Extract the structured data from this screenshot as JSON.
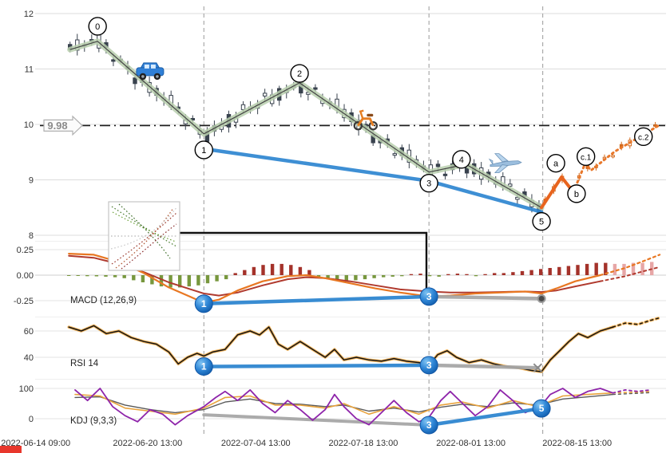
{
  "price_line": {
    "value": 9.98,
    "label": "9.98"
  },
  "panels": {
    "macd_label": "MACD (12,26,9)",
    "rsi_label": "RSI 14",
    "kdj_label": "KDJ (9,3,3)"
  },
  "axes": {
    "x_ticks": [
      {
        "label": "2022-06-14 09:00",
        "t": -0.003
      },
      {
        "label": "2022-06-20 13:00",
        "t": 0.176
      },
      {
        "label": "2022-07-04 13:00",
        "t": 0.349
      },
      {
        "label": "2022-07-18 13:00",
        "t": 0.521
      },
      {
        "label": "2022-08-01 13:00",
        "t": 0.693
      },
      {
        "label": "2022-08-15 13:00",
        "t": 0.863
      }
    ],
    "price_ticks": [
      {
        "v": 12,
        "label": "12"
      },
      {
        "v": 11,
        "label": "11"
      },
      {
        "v": 10,
        "label": "10"
      },
      {
        "v": 9,
        "label": "9"
      },
      {
        "v": 8,
        "label": "8"
      }
    ],
    "macd_ticks": [
      {
        "v": 0.25,
        "label": "0.25"
      },
      {
        "v": 0,
        "label": "0.00"
      },
      {
        "v": -0.25,
        "label": "-0.25"
      }
    ],
    "rsi_ticks": [
      {
        "v": 60,
        "label": "60"
      },
      {
        "v": 40,
        "label": "40"
      }
    ],
    "kdj_ticks": [
      {
        "v": 100,
        "label": "100"
      },
      {
        "v": 0,
        "label": "0"
      }
    ]
  },
  "annotations": {
    "icons": [
      {
        "name": "car-icon",
        "t": 0.18,
        "price": 10.98
      },
      {
        "name": "scooter-icon",
        "t": 0.524,
        "price": 10.12
      },
      {
        "name": "airplane-icon",
        "t": 0.747,
        "price": 9.3
      }
    ],
    "red_indicator_color": "#e8372c"
  },
  "chart_data": [
    {
      "type": "candlestick",
      "panel": "price",
      "ylim": [
        8,
        12
      ],
      "vlines": [
        0.266,
        0.626,
        0.808
      ],
      "zigzag": {
        "labels": [
          "start",
          "0",
          "1",
          "2",
          "3",
          "4",
          "5"
        ],
        "points": [
          [
            0.052,
            11.35
          ],
          [
            0.096,
            11.5
          ],
          [
            0.266,
            9.83
          ],
          [
            0.419,
            10.75
          ],
          [
            0.626,
            9.14
          ],
          [
            0.685,
            9.28
          ],
          [
            0.806,
            8.5
          ]
        ]
      },
      "abc": {
        "solid_until": 0.857,
        "points": [
          [
            0.806,
            8.5
          ],
          [
            0.838,
            9.05
          ],
          [
            0.857,
            8.78
          ],
          [
            0.876,
            9.3
          ],
          [
            0.885,
            9.17
          ],
          [
            0.923,
            9.51
          ],
          [
            0.962,
            9.77
          ],
          [
            0.992,
            9.97
          ]
        ]
      },
      "blue_trendline": [
        [
          0.266,
          9.56
        ],
        [
          0.626,
          8.98
        ],
        [
          0.806,
          8.42
        ]
      ],
      "wave_markers": [
        {
          "label": "0",
          "t": 0.096,
          "price": 11.77
        },
        {
          "label": "1",
          "t": 0.266,
          "price": 9.54
        },
        {
          "label": "2",
          "t": 0.419,
          "price": 10.92
        },
        {
          "label": "3",
          "t": 0.626,
          "price": 8.94
        },
        {
          "label": "4",
          "t": 0.678,
          "price": 9.37
        },
        {
          "label": "5",
          "t": 0.806,
          "price": 8.25
        },
        {
          "label": "a",
          "t": 0.829,
          "price": 9.3
        },
        {
          "label": "b",
          "t": 0.862,
          "price": 8.75
        },
        {
          "label": "c.1",
          "t": 0.877,
          "price": 9.42
        },
        {
          "label": "c.2",
          "t": 0.969,
          "price": 9.78
        }
      ]
    },
    {
      "type": "macd",
      "label": "MACD (12,26,9)",
      "ylim": [
        -0.32,
        0.3
      ],
      "hist": {
        "t0": 0.05,
        "dt": 0.0148,
        "values": [
          -0.005,
          -0.008,
          -0.01,
          -0.012,
          -0.015,
          -0.02,
          -0.03,
          -0.05,
          -0.07,
          -0.09,
          -0.11,
          -0.12,
          -0.12,
          -0.11,
          -0.1,
          -0.08,
          -0.06,
          -0.04,
          0.02,
          0.05,
          0.08,
          0.1,
          0.11,
          0.11,
          0.1,
          0.08,
          0.05,
          -0.02,
          -0.04,
          -0.05,
          -0.06,
          -0.05,
          -0.04,
          -0.03,
          -0.02,
          -0.015,
          -0.01,
          0.01,
          0.015,
          -0.01,
          -0.015,
          0.01,
          0.015,
          0.01,
          -0.01,
          0.01,
          0.02,
          0.02,
          0.03,
          0.04,
          0.05,
          0.06,
          0.07,
          0.08,
          0.09,
          0.1,
          0.11,
          0.12,
          0.12,
          0.11,
          0.11,
          0.12,
          0.12,
          0.13
        ]
      },
      "macd_line": [
        [
          0.05,
          0.21
        ],
        [
          0.09,
          0.2
        ],
        [
          0.13,
          0.13
        ],
        [
          0.17,
          0.02
        ],
        [
          0.21,
          -0.12
        ],
        [
          0.24,
          -0.2
        ],
        [
          0.266,
          -0.27
        ],
        [
          0.29,
          -0.24
        ],
        [
          0.32,
          -0.15
        ],
        [
          0.36,
          -0.06
        ],
        [
          0.4,
          -0.01
        ],
        [
          0.43,
          0.0
        ],
        [
          0.46,
          -0.03
        ],
        [
          0.5,
          -0.08
        ],
        [
          0.54,
          -0.13
        ],
        [
          0.58,
          -0.17
        ],
        [
          0.626,
          -0.21
        ],
        [
          0.66,
          -0.2
        ],
        [
          0.7,
          -0.18
        ],
        [
          0.74,
          -0.17
        ],
        [
          0.78,
          -0.16
        ],
        [
          0.806,
          -0.18
        ],
        [
          0.83,
          -0.13
        ],
        [
          0.86,
          -0.06
        ],
        [
          0.9,
          0.0
        ],
        [
          0.94,
          0.07
        ],
        [
          0.97,
          0.14
        ],
        [
          0.995,
          0.2
        ]
      ],
      "signal_line": [
        [
          0.05,
          0.19
        ],
        [
          0.09,
          0.17
        ],
        [
          0.13,
          0.11
        ],
        [
          0.17,
          0.03
        ],
        [
          0.21,
          -0.07
        ],
        [
          0.24,
          -0.13
        ],
        [
          0.266,
          -0.18
        ],
        [
          0.29,
          -0.2
        ],
        [
          0.32,
          -0.17
        ],
        [
          0.36,
          -0.1
        ],
        [
          0.4,
          -0.04
        ],
        [
          0.43,
          -0.02
        ],
        [
          0.46,
          -0.03
        ],
        [
          0.5,
          -0.06
        ],
        [
          0.54,
          -0.1
        ],
        [
          0.58,
          -0.14
        ],
        [
          0.626,
          -0.16
        ],
        [
          0.66,
          -0.17
        ],
        [
          0.7,
          -0.17
        ],
        [
          0.74,
          -0.165
        ],
        [
          0.78,
          -0.16
        ],
        [
          0.806,
          -0.165
        ],
        [
          0.83,
          -0.15
        ],
        [
          0.86,
          -0.11
        ],
        [
          0.9,
          -0.06
        ],
        [
          0.94,
          -0.01
        ],
        [
          0.97,
          0.04
        ],
        [
          0.995,
          0.08
        ]
      ],
      "blue_line": [
        [
          0.266,
          -0.28
        ],
        [
          0.626,
          -0.21
        ]
      ],
      "gray_line": [
        [
          0.626,
          -0.21
        ],
        [
          0.806,
          -0.23
        ]
      ],
      "end_dot": [
        0.806,
        -0.23
      ],
      "markers": [
        {
          "label": "1",
          "t": 0.266,
          "v": -0.28
        },
        {
          "label": "3",
          "t": 0.626,
          "v": -0.21
        }
      ]
    },
    {
      "type": "rsi",
      "label": "RSI 14",
      "ylim": [
        22,
        76
      ],
      "line": [
        [
          0.05,
          63
        ],
        [
          0.07,
          60
        ],
        [
          0.09,
          64
        ],
        [
          0.11,
          58
        ],
        [
          0.13,
          60
        ],
        [
          0.15,
          55
        ],
        [
          0.17,
          52
        ],
        [
          0.19,
          50
        ],
        [
          0.21,
          44
        ],
        [
          0.225,
          35
        ],
        [
          0.24,
          40
        ],
        [
          0.255,
          43
        ],
        [
          0.266,
          41
        ],
        [
          0.28,
          44
        ],
        [
          0.3,
          46
        ],
        [
          0.32,
          57
        ],
        [
          0.34,
          60
        ],
        [
          0.355,
          57
        ],
        [
          0.37,
          63
        ],
        [
          0.385,
          50
        ],
        [
          0.4,
          46
        ],
        [
          0.42,
          52
        ],
        [
          0.44,
          46
        ],
        [
          0.46,
          40
        ],
        [
          0.475,
          46
        ],
        [
          0.49,
          38
        ],
        [
          0.51,
          40
        ],
        [
          0.53,
          38
        ],
        [
          0.55,
          37
        ],
        [
          0.57,
          39
        ],
        [
          0.59,
          37
        ],
        [
          0.61,
          36
        ],
        [
          0.626,
          34
        ],
        [
          0.64,
          42
        ],
        [
          0.655,
          45
        ],
        [
          0.67,
          40
        ],
        [
          0.69,
          36
        ],
        [
          0.71,
          38
        ],
        [
          0.73,
          35
        ],
        [
          0.75,
          33
        ],
        [
          0.77,
          32
        ],
        [
          0.79,
          30
        ],
        [
          0.806,
          29
        ],
        [
          0.82,
          38
        ],
        [
          0.835,
          45
        ],
        [
          0.85,
          52
        ],
        [
          0.865,
          58
        ],
        [
          0.88,
          55
        ],
        [
          0.9,
          60
        ],
        [
          0.92,
          63
        ],
        [
          0.94,
          66
        ],
        [
          0.96,
          65
        ],
        [
          0.98,
          68
        ],
        [
          0.995,
          70
        ]
      ],
      "blue_line": [
        [
          0.266,
          33
        ],
        [
          0.626,
          34
        ]
      ],
      "gray_line": [
        [
          0.626,
          34
        ],
        [
          0.8,
          32
        ]
      ],
      "x_marker": [
        0.8,
        32
      ],
      "markers": [
        {
          "label": "1",
          "t": 0.266,
          "v": 33
        },
        {
          "label": "3",
          "t": 0.626,
          "v": 34
        }
      ]
    },
    {
      "type": "kdj",
      "label": "KDJ (9,3,3)",
      "ylim": [
        -35,
        115
      ],
      "j_line": [
        [
          0.06,
          95
        ],
        [
          0.08,
          60
        ],
        [
          0.1,
          100
        ],
        [
          0.12,
          40
        ],
        [
          0.14,
          10
        ],
        [
          0.16,
          -10
        ],
        [
          0.18,
          30
        ],
        [
          0.2,
          15
        ],
        [
          0.22,
          -20
        ],
        [
          0.24,
          10
        ],
        [
          0.266,
          40
        ],
        [
          0.285,
          70
        ],
        [
          0.3,
          90
        ],
        [
          0.32,
          60
        ],
        [
          0.34,
          95
        ],
        [
          0.36,
          50
        ],
        [
          0.38,
          20
        ],
        [
          0.4,
          60
        ],
        [
          0.42,
          30
        ],
        [
          0.44,
          -5
        ],
        [
          0.46,
          30
        ],
        [
          0.475,
          80
        ],
        [
          0.49,
          40
        ],
        [
          0.51,
          0
        ],
        [
          0.53,
          -20
        ],
        [
          0.55,
          20
        ],
        [
          0.57,
          60
        ],
        [
          0.59,
          20
        ],
        [
          0.61,
          -10
        ],
        [
          0.626,
          5
        ],
        [
          0.645,
          60
        ],
        [
          0.66,
          90
        ],
        [
          0.68,
          50
        ],
        [
          0.7,
          10
        ],
        [
          0.72,
          40
        ],
        [
          0.74,
          95
        ],
        [
          0.76,
          60
        ],
        [
          0.78,
          20
        ],
        [
          0.806,
          45
        ],
        [
          0.82,
          80
        ],
        [
          0.84,
          100
        ],
        [
          0.86,
          70
        ],
        [
          0.88,
          90
        ],
        [
          0.9,
          100
        ],
        [
          0.92,
          85
        ],
        [
          0.94,
          95
        ],
        [
          0.96,
          90
        ],
        [
          0.98,
          95
        ]
      ],
      "k_line": [
        [
          0.06,
          80
        ],
        [
          0.1,
          75
        ],
        [
          0.14,
          35
        ],
        [
          0.18,
          25
        ],
        [
          0.22,
          15
        ],
        [
          0.266,
          35
        ],
        [
          0.3,
          70
        ],
        [
          0.34,
          75
        ],
        [
          0.38,
          45
        ],
        [
          0.42,
          45
        ],
        [
          0.46,
          35
        ],
        [
          0.49,
          50
        ],
        [
          0.53,
          15
        ],
        [
          0.57,
          40
        ],
        [
          0.61,
          15
        ],
        [
          0.645,
          45
        ],
        [
          0.68,
          55
        ],
        [
          0.72,
          35
        ],
        [
          0.76,
          60
        ],
        [
          0.8,
          40
        ],
        [
          0.84,
          75
        ],
        [
          0.88,
          80
        ],
        [
          0.92,
          85
        ],
        [
          0.96,
          88
        ],
        [
          0.98,
          90
        ]
      ],
      "d_line": [
        [
          0.06,
          70
        ],
        [
          0.1,
          72
        ],
        [
          0.14,
          45
        ],
        [
          0.18,
          30
        ],
        [
          0.22,
          20
        ],
        [
          0.266,
          30
        ],
        [
          0.3,
          55
        ],
        [
          0.34,
          65
        ],
        [
          0.38,
          50
        ],
        [
          0.42,
          48
        ],
        [
          0.46,
          40
        ],
        [
          0.49,
          45
        ],
        [
          0.53,
          25
        ],
        [
          0.57,
          35
        ],
        [
          0.61,
          22
        ],
        [
          0.645,
          38
        ],
        [
          0.68,
          48
        ],
        [
          0.72,
          40
        ],
        [
          0.76,
          52
        ],
        [
          0.8,
          45
        ],
        [
          0.84,
          65
        ],
        [
          0.88,
          72
        ],
        [
          0.92,
          80
        ],
        [
          0.96,
          84
        ],
        [
          0.98,
          86
        ]
      ],
      "gray_line": [
        [
          0.266,
          13
        ],
        [
          0.626,
          -21
        ]
      ],
      "blue_line": [
        [
          0.626,
          -21
        ],
        [
          0.806,
          34
        ]
      ],
      "markers": [
        {
          "label": "3",
          "t": 0.626,
          "v": -21
        },
        {
          "label": "5",
          "t": 0.806,
          "v": 34
        }
      ]
    }
  ]
}
